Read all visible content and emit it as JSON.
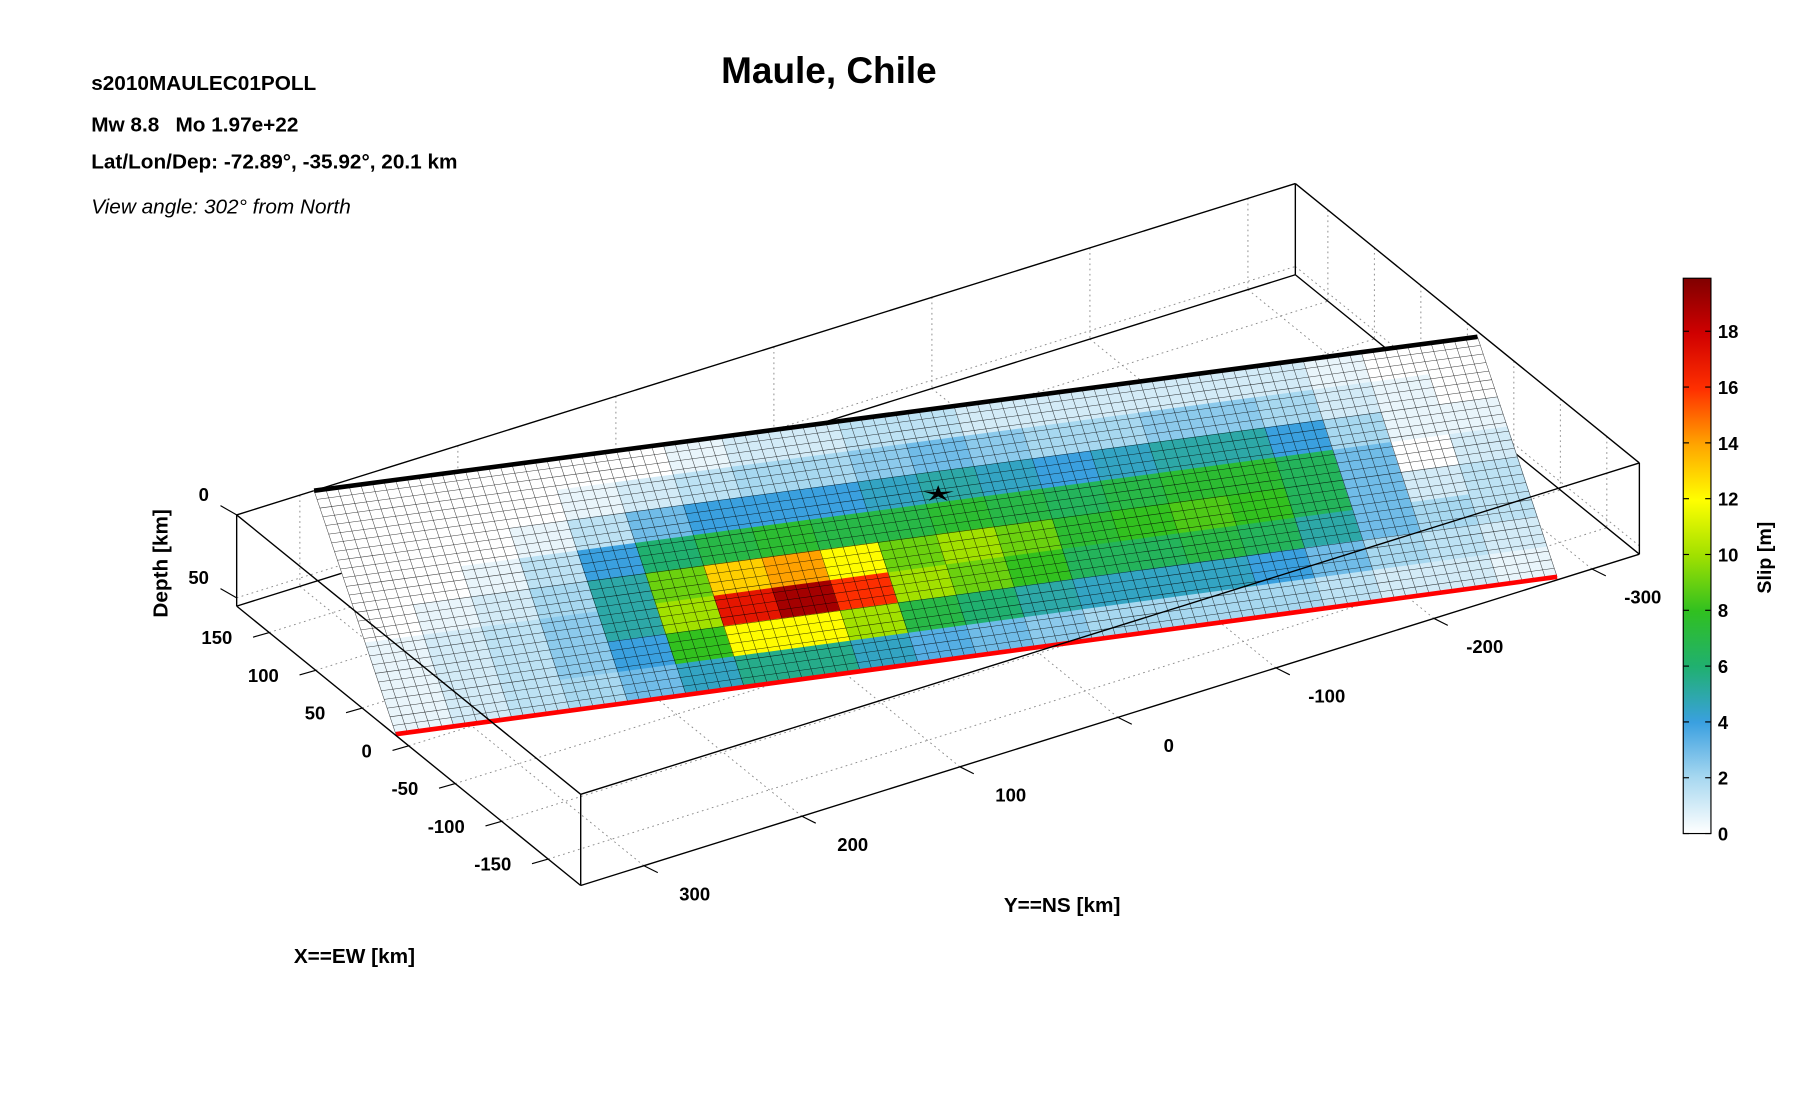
{
  "chart_data": {
    "type": "fault_slip_3d",
    "title": "Maule, Chile",
    "event_id": "s2010MAULEC01POLL",
    "magnitude": "Mw 8.8",
    "moment": "Mo 1.97e+22",
    "location": "Lat/Lon/Dep: -72.89°, -35.92°, 20.1 km",
    "view": "View angle: 302° from North",
    "xlabel": "X==EW [km]",
    "ylabel": "Y==NS [km]",
    "zlabel": "Depth [km]",
    "colorbar_label": "Slip [m]",
    "xlim": [
      -185,
      185
    ],
    "xticks": [
      -150,
      -100,
      -50,
      0,
      50,
      100,
      150
    ],
    "ylim": [
      340,
      -330
    ],
    "yticks": [
      -300,
      -200,
      -100,
      0,
      100,
      200,
      300
    ],
    "zlim": [
      0,
      55
    ],
    "zticks": [
      0,
      50
    ],
    "clim": [
      0,
      19.9
    ],
    "cticks": [
      0,
      2,
      4,
      6,
      8,
      10,
      12,
      14,
      16,
      18
    ],
    "colors": [
      "#ffffff",
      "#a8d8f0",
      "#3aa0e0",
      "#20b070",
      "#30c020",
      "#a0e000",
      "#ffff00",
      "#ffa500",
      "#ff3000",
      "#d00000",
      "#800000"
    ],
    "grid": true,
    "fault_corners": {
      "top_north": [
        185,
        291,
        0
      ],
      "top_south": [
        -16,
        -327,
        0
      ],
      "bottom_north": [
        7,
        344,
        50
      ],
      "bottom_south": [
        -190,
        -275,
        50
      ]
    },
    "hypocenter": {
      "x": 27,
      "y": -11,
      "z": 20.1
    },
    "slip": [
      [
        0,
        0,
        0,
        0,
        0,
        0,
        0.5,
        1,
        1,
        1.5,
        1.5,
        1,
        1,
        1,
        1,
        1,
        1,
        0.5,
        0,
        0
      ],
      [
        0,
        0,
        0,
        0,
        0.5,
        1,
        1.5,
        2,
        2,
        2.5,
        3,
        2.5,
        2,
        2,
        2.5,
        2.5,
        2,
        1,
        0.5,
        0
      ],
      [
        0,
        0,
        0,
        0.5,
        1.5,
        3,
        4,
        4,
        4,
        4.5,
        5,
        4.5,
        4,
        4.5,
        5,
        5,
        4,
        2,
        0.5,
        0.5
      ],
      [
        0,
        0,
        0.5,
        1.5,
        4,
        6,
        7,
        7.5,
        7,
        7,
        7.5,
        7,
        6.5,
        7,
        7.5,
        7.5,
        6.5,
        3,
        0,
        1
      ],
      [
        0,
        0.5,
        1,
        2,
        5,
        9,
        13,
        14,
        12,
        9,
        10,
        9,
        7.5,
        8,
        8.5,
        8,
        6.5,
        3,
        1,
        1.5
      ],
      [
        0.5,
        1,
        1.5,
        2.5,
        5,
        10,
        17,
        19,
        16,
        10,
        9,
        8,
        6.5,
        6.5,
        7,
        6.5,
        5,
        3,
        2,
        1.5
      ],
      [
        0.5,
        1,
        1.5,
        2.5,
        4,
        8,
        12,
        12,
        10,
        7,
        6,
        5,
        4.5,
        4.5,
        4.5,
        4,
        3,
        2,
        1.5,
        1
      ],
      [
        0.5,
        1,
        1.5,
        2,
        3,
        4.5,
        5.5,
        5.5,
        4.5,
        3.5,
        3,
        2.5,
        2,
        2,
        2,
        2,
        1.5,
        1,
        1,
        0.5
      ]
    ]
  }
}
